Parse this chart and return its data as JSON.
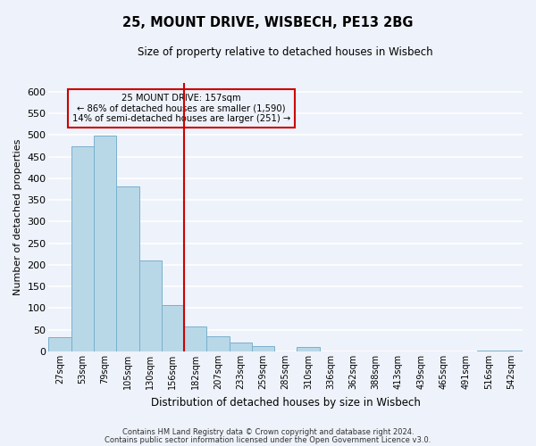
{
  "title": "25, MOUNT DRIVE, WISBECH, PE13 2BG",
  "subtitle": "Size of property relative to detached houses in Wisbech",
  "xlabel": "Distribution of detached houses by size in Wisbech",
  "ylabel": "Number of detached properties",
  "bar_labels": [
    "27sqm",
    "53sqm",
    "79sqm",
    "105sqm",
    "130sqm",
    "156sqm",
    "182sqm",
    "207sqm",
    "233sqm",
    "259sqm",
    "285sqm",
    "310sqm",
    "336sqm",
    "362sqm",
    "388sqm",
    "413sqm",
    "439sqm",
    "465sqm",
    "491sqm",
    "516sqm",
    "542sqm"
  ],
  "bar_values": [
    32,
    474,
    498,
    382,
    211,
    107,
    58,
    36,
    21,
    12,
    0,
    11,
    0,
    0,
    0,
    0,
    0,
    0,
    0,
    2,
    2
  ],
  "bar_color": "#b8d8e8",
  "bar_edge_color": "#7ab0cc",
  "property_line_x": 5.5,
  "property_line_label": "25 MOUNT DRIVE: 157sqm",
  "annotation_line1": "← 86% of detached houses are smaller (1,590)",
  "annotation_line2": "14% of semi-detached houses are larger (251) →",
  "vline_color": "#cc0000",
  "box_edge_color": "#cc0000",
  "ylim": [
    0,
    620
  ],
  "yticks": [
    0,
    50,
    100,
    150,
    200,
    250,
    300,
    350,
    400,
    450,
    500,
    550,
    600
  ],
  "footnote1": "Contains HM Land Registry data © Crown copyright and database right 2024.",
  "footnote2": "Contains public sector information licensed under the Open Government Licence v3.0.",
  "background_color": "#eef2fa"
}
